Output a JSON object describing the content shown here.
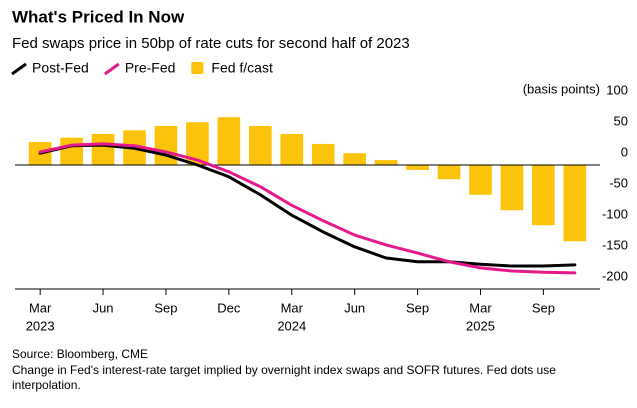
{
  "chart_data": {
    "type": "bar_line",
    "title": "What's Priced In Now",
    "subtitle": "Fed swaps price in 50bp of rate cuts for second half of 2023",
    "y_axis_label": "(basis points)",
    "source": "Source: Bloomberg, CME",
    "note": [
      "Change in Fed's interest-rate target implied by overnight index swaps and SOFR futures. Fed dots use",
      "interpolation."
    ],
    "x": [
      0,
      1,
      2,
      3,
      4,
      5,
      6,
      7,
      8,
      9,
      10,
      11,
      12,
      13,
      14,
      15,
      16,
      17
    ],
    "xlim": [
      -0.8,
      17.8
    ],
    "xticks": [
      {
        "value": 0,
        "label": "Mar"
      },
      {
        "value": 2,
        "label": "Jun"
      },
      {
        "value": 4,
        "label": "Sep"
      },
      {
        "value": 6,
        "label": "Dec"
      },
      {
        "value": 8,
        "label": "Mar"
      },
      {
        "value": 10,
        "label": "Jun"
      },
      {
        "value": 12,
        "label": "Sep"
      },
      {
        "value": 14,
        "label": "Mar"
      },
      {
        "value": 16,
        "label": "Sep"
      }
    ],
    "xtick_years": [
      {
        "value": 0,
        "label": "2023"
      },
      {
        "value": 8,
        "label": "2024"
      },
      {
        "value": 14,
        "label": "2025"
      }
    ],
    "ylim": [
      -200,
      100
    ],
    "yticks": [
      100,
      50,
      0,
      -50,
      -100,
      -150,
      -200
    ],
    "grid": false,
    "series": [
      {
        "name": "Post-Fed",
        "kind": "line",
        "color": "#000000",
        "values": [
          19,
          31,
          32,
          27,
          16,
          0,
          -19,
          -48,
          -81,
          -108,
          -132,
          -150,
          -156,
          -156,
          -160,
          -163,
          -163,
          -161
        ]
      },
      {
        "name": "Pre-Fed",
        "kind": "line",
        "color": "#e6198c",
        "values": [
          21,
          32,
          34,
          31,
          21,
          8,
          -11,
          -35,
          -65,
          -90,
          -113,
          -129,
          -142,
          -156,
          -166,
          -171,
          -173,
          -174
        ]
      },
      {
        "name": "Fed f/cast",
        "kind": "bar",
        "color": "#fcc30b",
        "values": [
          37,
          44,
          50,
          56,
          63,
          69,
          77,
          63,
          50,
          34,
          19,
          8,
          -8,
          -23,
          -48,
          -73,
          -97,
          -123
        ]
      }
    ]
  }
}
